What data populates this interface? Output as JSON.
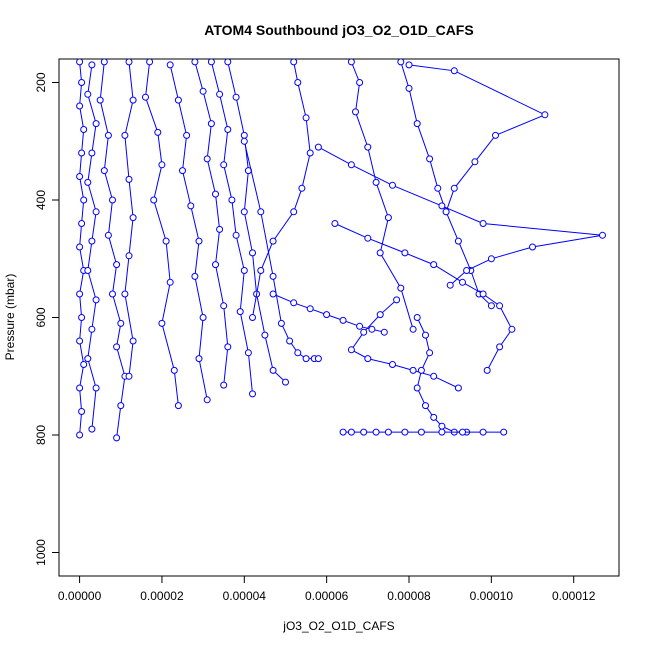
{
  "chart_data": {
    "type": "line",
    "title": "ATOM4 Southbound jO3_O2_O1D_CAFS",
    "xlabel": "jO3_O2_O1D_CAFS",
    "ylabel": "Pressure (mbar)",
    "xlim": [
      -5e-06,
      0.000131
    ],
    "ylim": [
      1040,
      160
    ],
    "y_reversed": true,
    "grid": false,
    "x_ticks": [
      {
        "value": 0,
        "label": "0.00000"
      },
      {
        "value": 2e-05,
        "label": "0.00002"
      },
      {
        "value": 4e-05,
        "label": "0.00004"
      },
      {
        "value": 6e-05,
        "label": "0.00006"
      },
      {
        "value": 8e-05,
        "label": "0.00008"
      },
      {
        "value": 0.0001,
        "label": "0.00010"
      },
      {
        "value": 0.00012,
        "label": "0.00012"
      }
    ],
    "y_ticks": [
      {
        "value": 200,
        "label": "200"
      },
      {
        "value": 400,
        "label": "400"
      },
      {
        "value": 600,
        "label": "600"
      },
      {
        "value": 800,
        "label": "800"
      },
      {
        "value": 1000,
        "label": "1000"
      }
    ],
    "series_color": "#0000ff",
    "marker": "open-circle",
    "series": [
      {
        "x": [
          0.0,
          5e-07,
          0.0,
          1e-06,
          5e-07,
          0.0,
          1e-06,
          5e-07,
          0.0,
          1e-06,
          0.0,
          5e-07,
          0.0,
          1e-06,
          0.0,
          5e-07,
          0.0
        ],
        "y": [
          165,
          200,
          240,
          280,
          320,
          360,
          400,
          440,
          480,
          520,
          560,
          600,
          640,
          680,
          720,
          760,
          800
        ]
      },
      {
        "x": [
          3e-06,
          2e-06,
          4e-06,
          3e-06,
          2e-06,
          4e-06,
          3e-06,
          2e-06,
          4e-06,
          3e-06,
          2e-06,
          4e-06,
          3e-06
        ],
        "y": [
          170,
          220,
          270,
          320,
          370,
          420,
          470,
          520,
          570,
          620,
          670,
          720,
          790
        ]
      },
      {
        "x": [
          6e-06,
          5e-06,
          7e-06,
          6e-06,
          8e-06,
          7e-06,
          9e-06,
          8e-06,
          1e-05,
          9e-06,
          1.1e-05,
          1e-05,
          9e-06
        ],
        "y": [
          165,
          230,
          290,
          350,
          400,
          460,
          510,
          560,
          610,
          650,
          700,
          750,
          805
        ]
      },
      {
        "x": [
          1.2e-05,
          1.3e-05,
          1.1e-05,
          1.2e-05,
          1.3e-05,
          1.2e-05,
          1.1e-05,
          1.3e-05,
          1.2e-05
        ],
        "y": [
          165,
          230,
          290,
          365,
          430,
          495,
          560,
          640,
          700
        ]
      },
      {
        "x": [
          1.7e-05,
          1.6e-05,
          1.9e-05,
          2e-05,
          1.8e-05,
          2.1e-05,
          2.2e-05,
          2e-05,
          2.3e-05,
          2.4e-05
        ],
        "y": [
          165,
          225,
          285,
          340,
          400,
          470,
          540,
          610,
          690,
          750
        ]
      },
      {
        "x": [
          2.2e-05,
          2.4e-05,
          2.6e-05,
          2.5e-05,
          2.7e-05,
          2.9e-05,
          2.8e-05,
          3e-05,
          2.9e-05,
          3.1e-05
        ],
        "y": [
          170,
          230,
          290,
          350,
          410,
          470,
          530,
          600,
          670,
          740
        ]
      },
      {
        "x": [
          2.8e-05,
          3e-05,
          3.2e-05,
          3.1e-05,
          3.3e-05,
          3.4e-05,
          3.3e-05,
          3.5e-05,
          3.6e-05,
          3.5e-05
        ],
        "y": [
          165,
          215,
          270,
          330,
          390,
          450,
          510,
          580,
          650,
          715
        ]
      },
      {
        "x": [
          3.2e-05,
          3.4e-05,
          3.6e-05,
          3.5e-05,
          3.7e-05,
          3.8e-05,
          4e-05,
          3.9e-05,
          4.1e-05,
          4.2e-05
        ],
        "y": [
          165,
          220,
          280,
          340,
          400,
          460,
          520,
          590,
          660,
          730
        ]
      },
      {
        "x": [
          3.6e-05,
          3.8e-05,
          4e-05,
          4.1e-05,
          4e-05,
          4.2e-05,
          4.3e-05,
          4.5e-05,
          4.7e-05,
          5e-05
        ],
        "y": [
          165,
          225,
          290,
          350,
          420,
          490,
          560,
          630,
          690,
          710
        ]
      },
      {
        "x": [
          5.2e-05,
          5.3e-05,
          5.5e-05,
          5.6e-05,
          5.4e-05,
          5.2e-05,
          4.7e-05,
          4.4e-05,
          4.2e-05
        ],
        "y": [
          165,
          200,
          260,
          320,
          380,
          420,
          470,
          520,
          600
        ]
      },
      {
        "x": [
          6.6e-05,
          6.8e-05,
          6.7e-05,
          7e-05,
          7.2e-05,
          7.5e-05,
          7.3e-05,
          7.8e-05,
          8.1e-05
        ],
        "y": [
          165,
          200,
          250,
          310,
          370,
          430,
          490,
          550,
          620
        ]
      },
      {
        "x": [
          7.8e-05,
          8e-05,
          8.2e-05,
          8.5e-05,
          8.7e-05,
          8.9e-05,
          9.2e-05,
          9.5e-05,
          9.7e-05,
          0.0001
        ],
        "y": [
          165,
          210,
          270,
          330,
          380,
          420,
          470,
          520,
          560,
          580
        ]
      },
      {
        "x": [
          8e-05,
          9.1e-05,
          0.000113,
          0.000101,
          9.6e-05,
          9.1e-05,
          8.9e-05
        ],
        "y": [
          170,
          180,
          255,
          290,
          335,
          380,
          420
        ]
      },
      {
        "x": [
          5.8e-05,
          6.6e-05,
          7.6e-05,
          8.8e-05,
          9.8e-05,
          0.000127,
          0.00011,
          0.0001,
          9.4e-05,
          9e-05
        ],
        "y": [
          310,
          340,
          375,
          410,
          440,
          460,
          480,
          500,
          520,
          545
        ]
      },
      {
        "x": [
          6.2e-05,
          7e-05,
          7.9e-05,
          8.6e-05,
          9.3e-05,
          9.8e-05,
          0.000102,
          0.000105,
          0.000102,
          9.9e-05
        ],
        "y": [
          440,
          465,
          490,
          510,
          540,
          560,
          580,
          620,
          650,
          690
        ]
      },
      {
        "x": [
          7.7e-05,
          7.3e-05,
          6.9e-05,
          6.6e-05,
          7e-05,
          7.6e-05,
          8.1e-05,
          8.6e-05,
          9.2e-05
        ],
        "y": [
          570,
          595,
          625,
          655,
          670,
          680,
          690,
          700,
          720
        ]
      },
      {
        "x": [
          8.2e-05,
          8.4e-05,
          8.5e-05,
          8.3e-05,
          8.2e-05,
          8.4e-05,
          8.6e-05,
          8.8e-05,
          9.1e-05,
          9.4e-05
        ],
        "y": [
          600,
          630,
          660,
          690,
          720,
          750,
          770,
          785,
          795,
          795
        ]
      },
      {
        "x": [
          6.4e-05,
          6.6e-05,
          6.9e-05,
          7.2e-05,
          7.5e-05,
          7.9e-05,
          8.3e-05,
          8.8e-05,
          9.3e-05,
          9.8e-05,
          0.000103
        ],
        "y": [
          795,
          795,
          795,
          795,
          795,
          795,
          795,
          795,
          795,
          795,
          795
        ]
      },
      {
        "x": [
          4e-05,
          4.4e-05,
          4.7e-05,
          4.9e-05,
          5.1e-05,
          5.3e-05,
          5.5e-05,
          5.7e-05,
          5.8e-05
        ],
        "y": [
          300,
          420,
          530,
          610,
          640,
          660,
          670,
          670,
          670
        ]
      },
      {
        "x": [
          4.7e-05,
          5.2e-05,
          5.6e-05,
          6e-05,
          6.4e-05,
          6.8e-05,
          7.1e-05,
          7.4e-05
        ],
        "y": [
          560,
          575,
          585,
          595,
          605,
          615,
          620,
          625
        ]
      }
    ]
  }
}
